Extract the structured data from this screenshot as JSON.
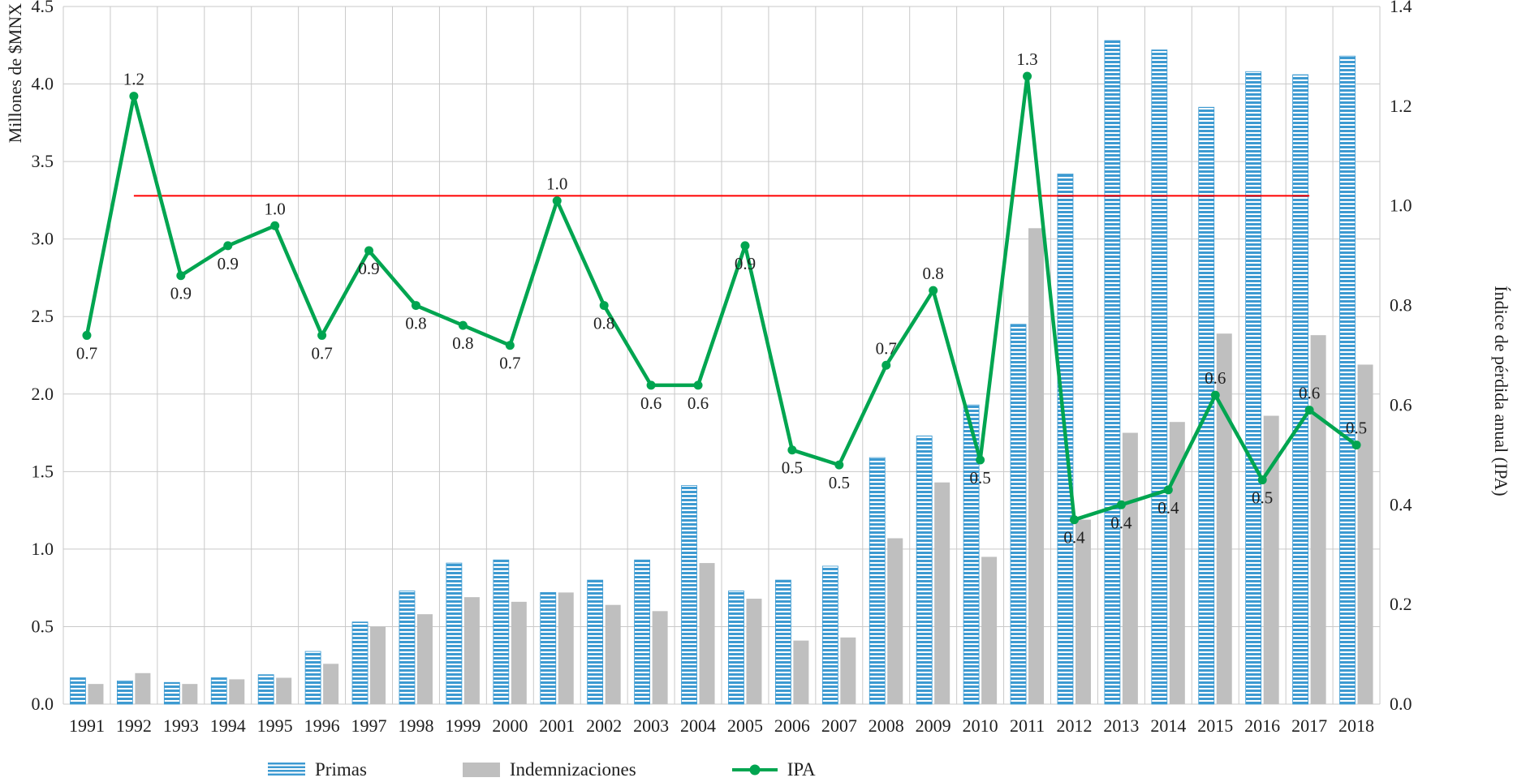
{
  "chart_data": {
    "type": "combo",
    "title": "",
    "categories": [
      "1991",
      "1992",
      "1993",
      "1994",
      "1995",
      "1996",
      "1997",
      "1998",
      "1999",
      "2000",
      "2001",
      "2002",
      "2003",
      "2004",
      "2005",
      "2006",
      "2007",
      "2008",
      "2009",
      "2010",
      "2011",
      "2012",
      "2013",
      "2014",
      "2015",
      "2016",
      "2017",
      "2018"
    ],
    "left_axis": {
      "title": "Millones de $MNX",
      "min": 0,
      "max": 4.5,
      "step": 0.5
    },
    "right_axis": {
      "title": "Índice de pérdida anual (IPA)",
      "min": 0,
      "max": 1.4,
      "step": 0.2
    },
    "grid": true,
    "legend_position": "bottom",
    "series": [
      {
        "name": "Primas",
        "type": "bar",
        "axis": "left",
        "color": "#3D9AD1",
        "pattern": "horizontal-stripes",
        "values": [
          0.17,
          0.15,
          0.14,
          0.17,
          0.19,
          0.34,
          0.53,
          0.73,
          0.91,
          0.93,
          0.72,
          0.8,
          0.93,
          1.41,
          0.73,
          0.8,
          0.89,
          1.59,
          1.73,
          1.93,
          2.45,
          3.42,
          4.28,
          4.22,
          3.85,
          4.08,
          4.06,
          4.18
        ]
      },
      {
        "name": "Indemnizaciones",
        "type": "bar",
        "axis": "left",
        "color": "#BFBFBF",
        "pattern": "solid",
        "values": [
          0.13,
          0.2,
          0.13,
          0.16,
          0.17,
          0.26,
          0.5,
          0.58,
          0.69,
          0.66,
          0.72,
          0.64,
          0.6,
          0.91,
          0.68,
          0.41,
          0.43,
          1.07,
          1.43,
          0.95,
          3.07,
          1.19,
          1.75,
          1.82,
          2.39,
          1.86,
          2.38,
          2.19
        ]
      },
      {
        "name": "IPA",
        "type": "line",
        "axis": "right",
        "color": "#00A550",
        "values": [
          0.74,
          1.22,
          0.86,
          0.92,
          0.96,
          0.74,
          0.91,
          0.8,
          0.76,
          0.72,
          1.01,
          0.8,
          0.64,
          0.64,
          0.92,
          0.51,
          0.48,
          0.68,
          0.83,
          0.49,
          1.26,
          0.37,
          0.4,
          0.43,
          0.62,
          0.45,
          0.59,
          0.52
        ],
        "labels": [
          "0.7",
          "1.2",
          "0.9",
          "0.9",
          "1.0",
          "0.7",
          "0.9",
          "0.8",
          "0.8",
          "0.7",
          "1.0",
          "0.8",
          "0.6",
          "0.6",
          "0.9",
          "0.5",
          "0.5",
          "0.7",
          "0.8",
          "0.5",
          "1.3",
          "0.4",
          "0.4",
          "0.4",
          "0.6",
          "0.5",
          "0.6",
          "0.5"
        ],
        "label_positions": [
          "below",
          "above",
          "below",
          "below",
          "above",
          "below",
          "below",
          "below",
          "below",
          "below",
          "above",
          "below",
          "below",
          "below",
          "below",
          "below",
          "below",
          "above",
          "above",
          "below",
          "above",
          "below",
          "below",
          "below",
          "above",
          "below",
          "above",
          "above"
        ]
      }
    ],
    "reference_line": {
      "color": "#FF0000",
      "axis": "right",
      "value": 1.02,
      "from_category": "1992",
      "to_category": "2017"
    },
    "colors": {
      "grid": "#C9C9C9",
      "text": "#1f1f1f",
      "primas": "#3D9AD1",
      "indemnizaciones": "#BFBFBF",
      "ipa": "#00A550",
      "reference": "#FF0000"
    }
  }
}
